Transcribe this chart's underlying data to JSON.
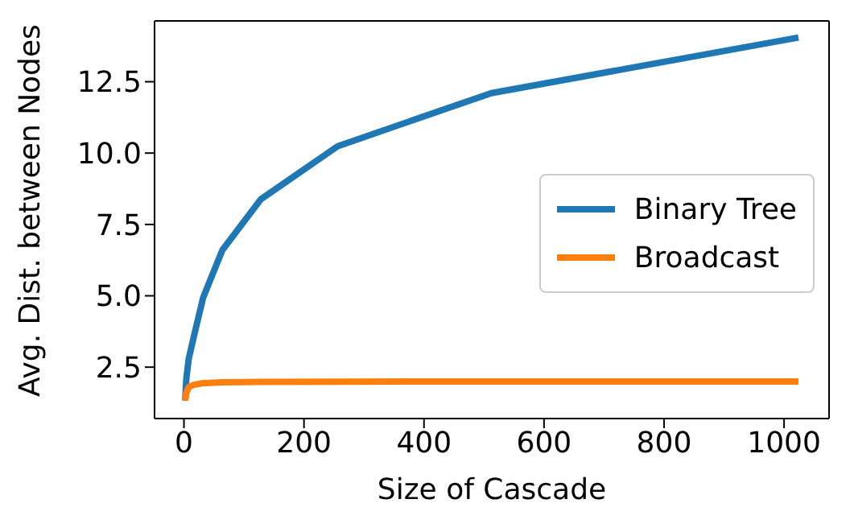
{
  "chart_data": {
    "type": "line",
    "xlabel": "Size of Cascade",
    "ylabel": "Avg. Dist. between Nodes",
    "x": [
      2,
      4,
      8,
      16,
      32,
      64,
      128,
      256,
      512,
      1024
    ],
    "series": [
      {
        "name": "Binary Tree",
        "color": "#1f77b4",
        "values": [
          1.33,
          2.1,
          2.8,
          3.53,
          4.94,
          6.6,
          8.38,
          10.24,
          12.1,
          14.05
        ]
      },
      {
        "name": "Broadcast",
        "color": "#ff7f0e",
        "values": [
          1.33,
          1.6,
          1.8,
          1.88,
          1.94,
          1.97,
          1.98,
          1.99,
          2.0,
          2.0
        ]
      }
    ],
    "xlim": [
      -49,
      1075
    ],
    "xticks": [
      0,
      200,
      400,
      600,
      800,
      1000
    ],
    "ylim": [
      0.7,
      14.63
    ],
    "yticks": [
      {
        "value": 2.5,
        "label": "2.5"
      },
      {
        "value": 5,
        "label": "5.0"
      },
      {
        "value": 7.5,
        "label": "7.5"
      },
      {
        "value": 10,
        "label": "10.0"
      },
      {
        "value": 12.5,
        "label": "12.5"
      }
    ],
    "grid": false,
    "legend": "right",
    "marker": "none",
    "line_style": "solid"
  }
}
